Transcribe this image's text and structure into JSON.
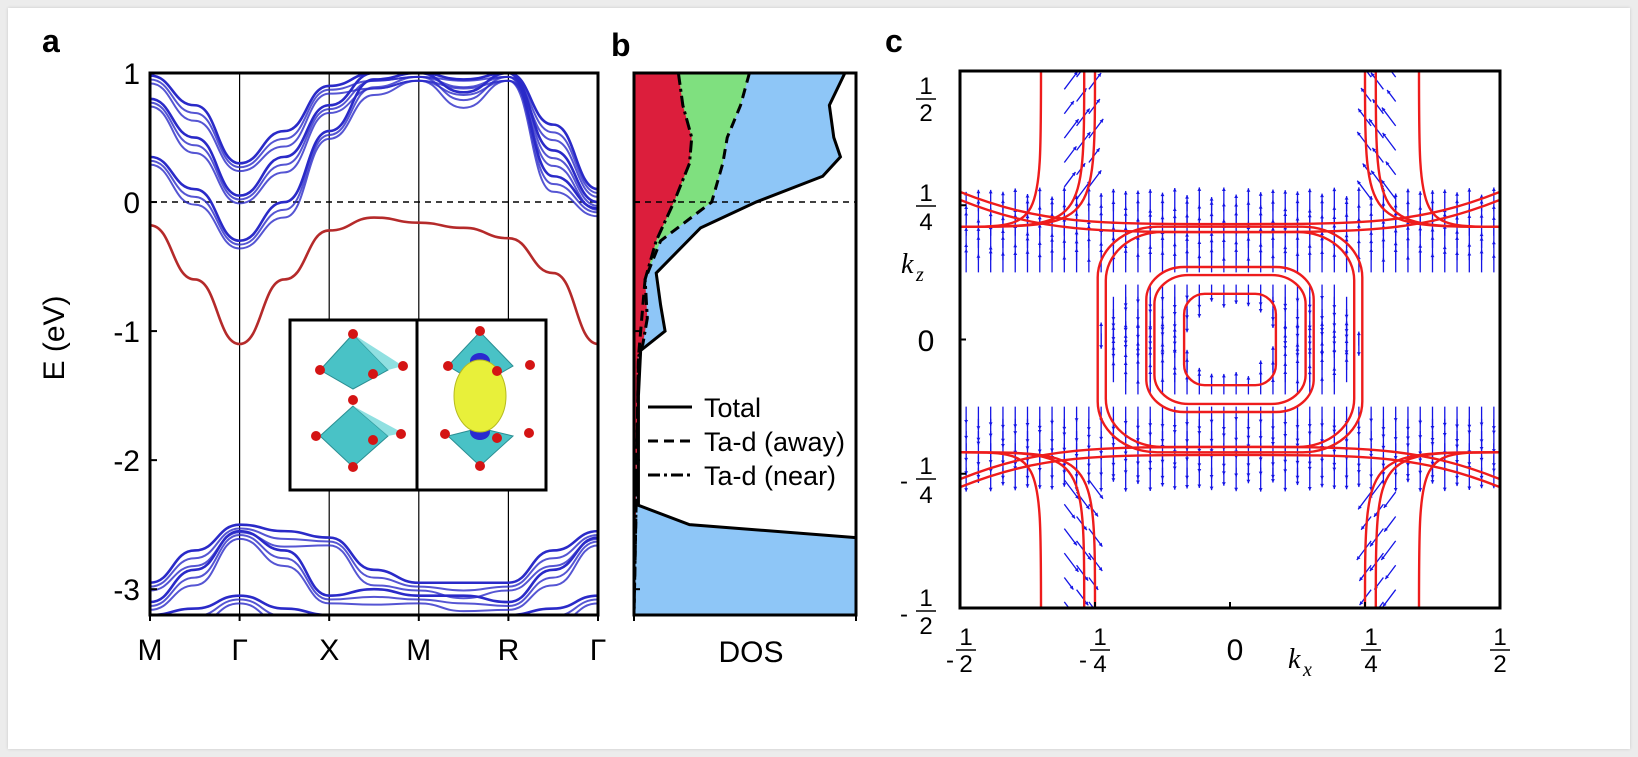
{
  "chart_data": [
    {
      "panel": "a",
      "type": "line",
      "ylabel": "E (eV)",
      "ylim": [
        -3.2,
        1
      ],
      "yticks": [
        "1",
        "0",
        "-1",
        "-2",
        "-3"
      ],
      "ytick_values": [
        1,
        0,
        -1,
        -2,
        -3
      ],
      "kpath": [
        "M",
        "Γ",
        "X",
        "M",
        "R",
        "Γ"
      ],
      "fermi_level": 0,
      "series": [
        {
          "color": "#b52a2a",
          "x": [
            0,
            0.5,
            1,
            1.5,
            2,
            2.5,
            3,
            3.5,
            4,
            4.5,
            5
          ],
          "y": [
            -0.18,
            -0.6,
            -1.1,
            -0.6,
            -0.22,
            -0.12,
            -0.16,
            -0.2,
            -0.28,
            -0.55,
            -1.1
          ]
        },
        {
          "color": "#2a2ac8",
          "x": [
            0,
            0.5,
            1,
            1.5,
            2,
            2.5,
            3,
            3.5,
            4,
            4.5,
            5
          ],
          "y": [
            0.35,
            0.1,
            -0.3,
            0.0,
            0.55,
            0.95,
            1.0,
            0.85,
            1.0,
            0.2,
            -0.05
          ]
        },
        {
          "color": "#2a2ac8",
          "x": [
            0,
            0.5,
            1,
            1.5,
            2,
            2.5,
            3,
            3.5,
            4,
            4.5,
            5
          ],
          "y": [
            0.8,
            0.5,
            0.05,
            0.35,
            0.75,
            1.0,
            1.0,
            0.95,
            1.0,
            0.4,
            0.0
          ]
        },
        {
          "color": "#2a2ac8",
          "x": [
            0,
            0.5,
            1,
            1.5,
            2,
            2.5,
            3,
            3.5,
            4,
            4.5,
            5
          ],
          "y": [
            0.98,
            0.75,
            0.3,
            0.55,
            0.9,
            1.0,
            1.0,
            1.0,
            1.0,
            0.6,
            0.1
          ]
        },
        {
          "color": "#2a2ac8",
          "x": [
            0,
            0.5,
            1,
            1.5,
            2,
            2.5,
            3,
            3.5,
            4,
            4.5,
            5
          ],
          "y": [
            -2.95,
            -2.7,
            -2.5,
            -2.55,
            -2.6,
            -2.85,
            -2.95,
            -2.95,
            -2.95,
            -2.7,
            -2.55
          ]
        },
        {
          "color": "#2a2ac8",
          "x": [
            0,
            0.5,
            1,
            1.5,
            2,
            2.5,
            3,
            3.5,
            4,
            4.5,
            5
          ],
          "y": [
            -3.1,
            -2.85,
            -2.55,
            -2.7,
            -3.05,
            -3.0,
            -3.05,
            -3.05,
            -3.1,
            -2.85,
            -2.6
          ]
        },
        {
          "color": "#2a2ac8",
          "x": [
            0,
            0.5,
            1,
            1.5,
            2,
            2.5,
            3,
            3.5,
            4,
            4.5,
            5
          ],
          "y": [
            -3.2,
            -3.15,
            -3.05,
            -3.15,
            -3.2,
            -3.2,
            -3.2,
            -3.2,
            -3.2,
            -3.15,
            -3.05
          ]
        }
      ]
    },
    {
      "panel": "b",
      "type": "area",
      "xlabel": "DOS",
      "ylim": [
        -3.2,
        1
      ],
      "fill_colors": {
        "total": "#8ec6f7",
        "away": "#7fe07f",
        "near": "#dc1e3c"
      },
      "legend": [
        "Total",
        "Ta-d (away)",
        "Ta-d (near)"
      ],
      "series": [
        {
          "name": "Total",
          "style": "solid",
          "y": [
            1.0,
            0.75,
            0.5,
            0.35,
            0.2,
            0.0,
            -0.2,
            -0.55,
            -0.8,
            -1.0,
            -1.15,
            -1.5,
            -2.0,
            -2.35,
            -2.5,
            -2.6,
            -3.2
          ],
          "x": [
            0.95,
            0.88,
            0.9,
            0.93,
            0.85,
            0.55,
            0.3,
            0.1,
            0.12,
            0.14,
            0.03,
            0.02,
            0.02,
            0.02,
            0.25,
            1.0,
            1.0
          ]
        },
        {
          "name": "Ta-d (away)",
          "style": "dashed",
          "y": [
            1.0,
            0.75,
            0.5,
            0.3,
            0.0,
            -0.3,
            -0.6,
            -1.0,
            -1.2,
            -2.3,
            -3.2
          ],
          "x": [
            0.52,
            0.48,
            0.42,
            0.4,
            0.35,
            0.12,
            0.05,
            0.03,
            0.02,
            0.01,
            0.0
          ]
        },
        {
          "name": "Ta-d (near)",
          "style": "dashdot",
          "y": [
            1.0,
            0.75,
            0.5,
            0.3,
            0.0,
            -0.3,
            -0.6,
            -0.9,
            -1.1,
            -1.2,
            -2.3,
            -3.2
          ],
          "x": [
            0.2,
            0.22,
            0.26,
            0.25,
            0.18,
            0.1,
            0.05,
            0.06,
            0.04,
            0.02,
            0.01,
            0.0
          ]
        }
      ]
    },
    {
      "panel": "c",
      "type": "scatter",
      "xlabel": "k_x",
      "ylabel": "k_z",
      "xlim": [
        -0.5,
        0.5
      ],
      "ylim": [
        -0.5,
        0.5
      ],
      "curve_color": "#ee1c1c",
      "arrow_color": "#1414e6",
      "contours": [
        {
          "cx": 0,
          "cy": 0,
          "rx": 0.085,
          "ry": 0.085
        },
        {
          "cx": 0,
          "cy": 0,
          "rx": 0.14,
          "ry": 0.12
        },
        {
          "cx": 0,
          "cy": 0,
          "rx": 0.155,
          "ry": 0.135
        },
        {
          "cx": 0,
          "cy": 0,
          "rx": 0.23,
          "ry": 0.2
        },
        {
          "cx": 0,
          "cy": 0,
          "rx": 0.245,
          "ry": 0.21
        }
      ]
    }
  ],
  "labels": {
    "panel_a": "a",
    "panel_b": "b",
    "panel_c": "c",
    "c_x_ticks": [
      "-",
      "1",
      "2",
      "-",
      "1",
      "4",
      "0",
      "1",
      "4",
      "1",
      "2"
    ],
    "c_zero": "0",
    "kx_main": "k",
    "kx_sub": "x",
    "kz_main": "k",
    "kz_sub": "z"
  }
}
